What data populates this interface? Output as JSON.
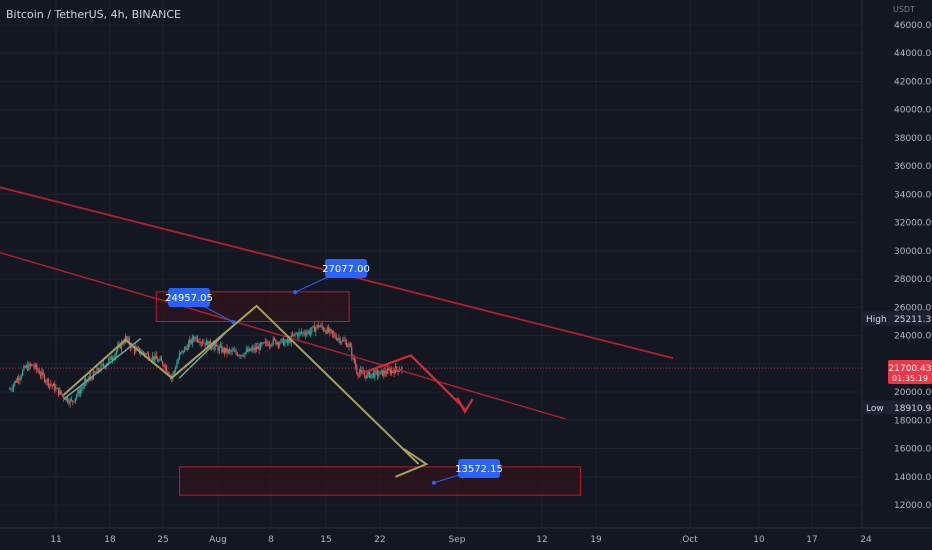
{
  "header": {
    "title": "Bitcoin / TetherUS, 4h, BINANCE"
  },
  "price_axis": {
    "unit": "USDT",
    "ticks": [
      "46000.00",
      "44000.00",
      "42000.00",
      "40000.00",
      "38000.00",
      "36000.00",
      "34000.00",
      "32000.00",
      "30000.00",
      "28000.00",
      "26000.00",
      "24000.00",
      "22000.00",
      "20000.00",
      "18000.00",
      "16000.00",
      "14000.00",
      "12000.00"
    ],
    "high_label": "High",
    "high_value": "25211.32",
    "low_label": "Low",
    "low_value": "18910.94",
    "last_price": "21700.43",
    "countdown": "01:35:19"
  },
  "time_axis": {
    "ticks": [
      "11",
      "18",
      "25",
      "Aug",
      "8",
      "15",
      "22",
      "Sep",
      "12",
      "19",
      "Oct",
      "10",
      "17",
      "24"
    ]
  },
  "annotations": [
    {
      "label": "24957.05"
    },
    {
      "label": "27077.00"
    },
    {
      "label": "13572.15"
    }
  ],
  "colors": {
    "background": "#131722",
    "grid": "#1e222d",
    "trendline": "#b2202a",
    "zone_border": "#b2202a",
    "zone_fill": "#3a1217",
    "pattern_olive": "#a8a05a",
    "pattern_green": "#6aa99a",
    "arrow_red": "#d12d36",
    "candle_up": "#26a69a",
    "candle_down": "#ef5350",
    "label_blue": "#2962ff",
    "price_tag_red": "#f23645",
    "axis_dark": "#1c2030"
  },
  "chart_data": {
    "type": "candlestick",
    "title": "Bitcoin / TetherUS, 4h, BINANCE",
    "xlabel": "",
    "ylabel": "USDT",
    "ylim": [
      11000,
      47000
    ],
    "x_ticks": [
      "11",
      "18",
      "25",
      "Aug",
      "8",
      "15",
      "22",
      "Sep",
      "12",
      "19",
      "Oct",
      "10",
      "17",
      "24"
    ],
    "price_path": [
      [
        "Jul 5",
        20200
      ],
      [
        "Jul 7",
        21700
      ],
      [
        "Jul 8",
        21900
      ],
      [
        "Jul 10",
        20700
      ],
      [
        "Jul 12",
        19700
      ],
      [
        "Jul 13",
        19300
      ],
      [
        "Jul 15",
        20800
      ],
      [
        "Jul 18",
        22300
      ],
      [
        "Jul 20",
        23800
      ],
      [
        "Jul 21",
        23100
      ],
      [
        "Jul 23",
        22600
      ],
      [
        "Jul 25",
        22000
      ],
      [
        "Jul 26",
        21000
      ],
      [
        "Jul 27",
        22600
      ],
      [
        "Jul 29",
        23900
      ],
      [
        "Jul 31",
        23300
      ],
      [
        "Aug 2",
        22900
      ],
      [
        "Aug 4",
        22700
      ],
      [
        "Aug 6",
        23100
      ],
      [
        "Aug 8",
        23600
      ],
      [
        "Aug 10",
        23500
      ],
      [
        "Aug 11",
        24100
      ],
      [
        "Aug 13",
        24300
      ],
      [
        "Aug 14",
        24700
      ],
      [
        "Aug 15",
        24400
      ],
      [
        "Aug 16",
        24000
      ],
      [
        "Aug 17",
        23700
      ],
      [
        "Aug 18",
        23300
      ],
      [
        "Aug 19",
        21500
      ],
      [
        "Aug 20",
        21200
      ],
      [
        "Aug 22",
        21300
      ],
      [
        "Aug 24",
        21600
      ],
      [
        "Aug 25",
        21700
      ]
    ],
    "high": 25211.32,
    "low": 18910.94,
    "last": 21700.43,
    "levels": [
      {
        "name": "24957.05",
        "value": 24957.05
      },
      {
        "name": "27077.00",
        "value": 27077.0
      },
      {
        "name": "13572.15",
        "value": 13572.15
      }
    ],
    "zones": [
      {
        "from": "Jul 24",
        "to": "Aug 18",
        "low": 25000,
        "high": 27100
      },
      {
        "from": "Jul 27",
        "to": "Sep 17",
        "low": 12700,
        "high": 14700
      }
    ],
    "trendlines": [
      {
        "from": [
          "Jun 28",
          35300
        ],
        "to": [
          "Sep 29",
          22400
        ]
      },
      {
        "from": [
          "Jun 28",
          30800
        ],
        "to": [
          "Sep 15",
          18100
        ]
      }
    ],
    "legend": "none",
    "grid": true
  }
}
